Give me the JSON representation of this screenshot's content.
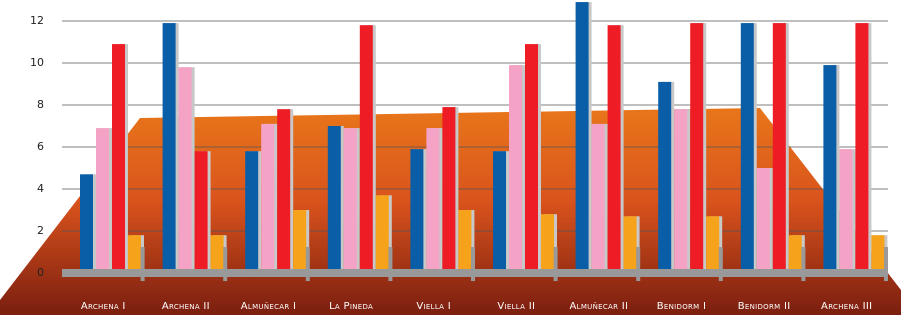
{
  "chart_data": {
    "type": "bar",
    "categories": [
      "Archena I",
      "Archena II",
      "Almuñecar I",
      "La Pineda",
      "Viella I",
      "Viella II",
      "Almuñecar II",
      "Benidorm I",
      "Benidorm II",
      "Archena III"
    ],
    "series": [
      {
        "color": "#0a5ea8",
        "values": [
          4.7,
          11.9,
          5.8,
          7.0,
          5.9,
          5.8,
          12.9,
          9.1,
          11.9,
          9.9
        ]
      },
      {
        "color": "#f4a3c6",
        "values": [
          6.9,
          9.8,
          7.1,
          6.9,
          6.9,
          9.9,
          7.1,
          7.8,
          5.0,
          5.9
        ]
      },
      {
        "color": "#ee1c25",
        "values": [
          10.9,
          5.8,
          7.8,
          11.8,
          7.9,
          10.9,
          11.8,
          11.9,
          11.9,
          11.9
        ]
      },
      {
        "color": "#f7a21b",
        "values": [
          1.8,
          1.8,
          3.0,
          3.7,
          3.0,
          2.8,
          2.7,
          2.7,
          1.8,
          1.8
        ]
      }
    ],
    "ylim": [
      0,
      13
    ],
    "yticks": [
      0,
      2,
      4,
      6,
      8,
      10,
      12
    ],
    "grid": true
  }
}
